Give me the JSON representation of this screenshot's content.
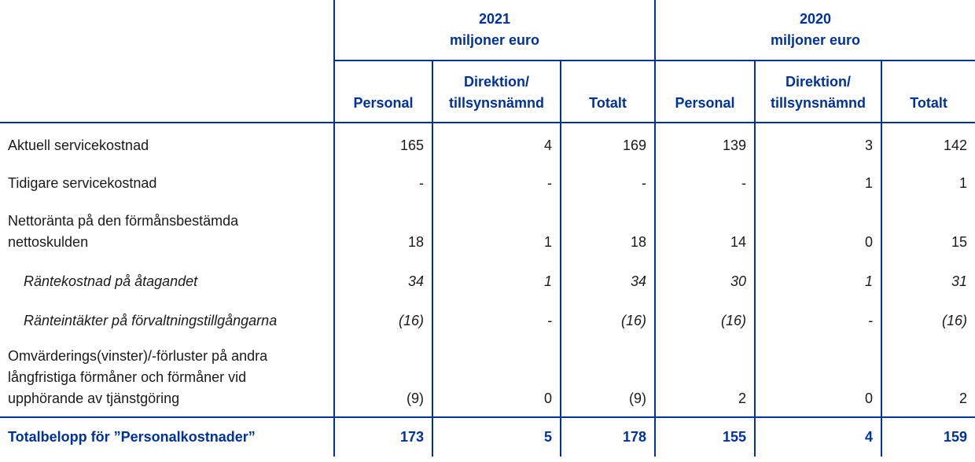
{
  "header": {
    "years": [
      {
        "year": "2021",
        "unit": "miljoner euro"
      },
      {
        "year": "2020",
        "unit": "miljoner euro"
      }
    ],
    "columns": [
      "Personal",
      "Direktion/ tillsynsnämnd",
      "Totalt",
      "Personal",
      "Direktion/ tillsynsnämnd",
      "Totalt"
    ]
  },
  "rows": [
    {
      "label": "Aktuell servicekostnad",
      "italic": false,
      "values": [
        "165",
        "4",
        "169",
        "139",
        "3",
        "142"
      ]
    },
    {
      "label": "Tidigare servicekostnad",
      "italic": false,
      "values": [
        "-",
        "-",
        "-",
        "-",
        "1",
        "1"
      ]
    },
    {
      "label": "Nettoränta på den förmånsbestämda nettoskulden",
      "italic": false,
      "values": [
        "18",
        "1",
        "18",
        "14",
        "0",
        "15"
      ]
    },
    {
      "label": "Räntekostnad på åtagandet",
      "italic": true,
      "values": [
        "34",
        "1",
        "34",
        "30",
        "1",
        "31"
      ]
    },
    {
      "label": "Ränteintäkter på förvaltningstillgångarna",
      "italic": true,
      "values": [
        "(16)",
        "-",
        "(16)",
        "(16)",
        "-",
        "(16)"
      ]
    },
    {
      "label": "Omvärderings(vinster)/-förluster på andra långfristiga förmåner och förmåner vid upphörande av tjänstgöring",
      "italic": false,
      "values": [
        "(9)",
        "0",
        "(9)",
        "2",
        "0",
        "2"
      ]
    }
  ],
  "total": {
    "label": "Totalbelopp för ”Personalkostnader”",
    "values": [
      "173",
      "5",
      "178",
      "155",
      "4",
      "159"
    ]
  },
  "colors": {
    "accent": "#003299"
  }
}
